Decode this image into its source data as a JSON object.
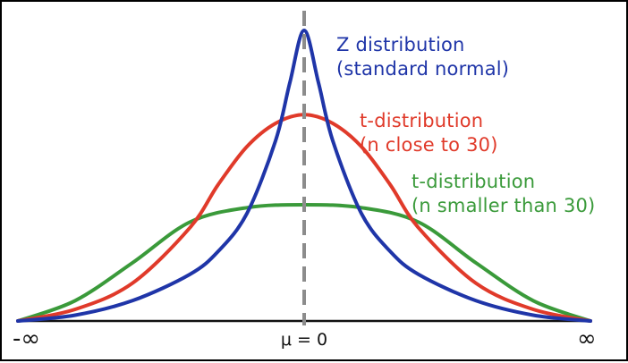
{
  "chart_data": {
    "type": "line",
    "x_ticks": [
      "-∞",
      "μ = 0",
      "∞"
    ],
    "grid": false,
    "legend": "direct labels next to curves",
    "mean_line": {
      "x": 0,
      "style": "dashed",
      "color": "#8c8c8c"
    },
    "series": [
      {
        "name": "Z distribution (standard normal)",
        "label_lines": [
          "Z distribution",
          "(standard normal)"
        ],
        "color": "#1f35a8",
        "peak": 1.0,
        "shape": "narrow",
        "x": [
          -5,
          -4,
          -3,
          -2,
          -1.5,
          -1,
          -0.5,
          -0.25,
          0,
          0.25,
          0.5,
          1,
          1.5,
          2,
          3,
          4,
          5
        ],
        "values": [
          0,
          0.02,
          0.07,
          0.16,
          0.24,
          0.37,
          0.62,
          0.82,
          1.0,
          0.82,
          0.62,
          0.37,
          0.24,
          0.16,
          0.07,
          0.02,
          0
        ]
      },
      {
        "name": "t-distribution (n close to 30)",
        "label_lines": [
          "t-distribution",
          "(n close to 30)"
        ],
        "color": "#e03a2a",
        "peak": 0.71,
        "shape": "medium",
        "x": [
          -5,
          -4,
          -3,
          -2,
          -1.5,
          -1,
          -0.5,
          0,
          0.5,
          1,
          1.5,
          2,
          3,
          4,
          5
        ],
        "values": [
          0,
          0.04,
          0.13,
          0.32,
          0.47,
          0.6,
          0.68,
          0.71,
          0.68,
          0.6,
          0.47,
          0.32,
          0.13,
          0.04,
          0
        ]
      },
      {
        "name": "t-distribution (n smaller than 30)",
        "label_lines": [
          "t-distribution",
          "(n smaller than 30)"
        ],
        "color": "#3a9a3a",
        "peak": 0.4,
        "shape": "wide",
        "x": [
          -5,
          -4,
          -3,
          -2,
          -1,
          0,
          1,
          2,
          3,
          4,
          5
        ],
        "values": [
          0,
          0.07,
          0.2,
          0.34,
          0.39,
          0.4,
          0.39,
          0.34,
          0.2,
          0.07,
          0
        ]
      }
    ]
  }
}
